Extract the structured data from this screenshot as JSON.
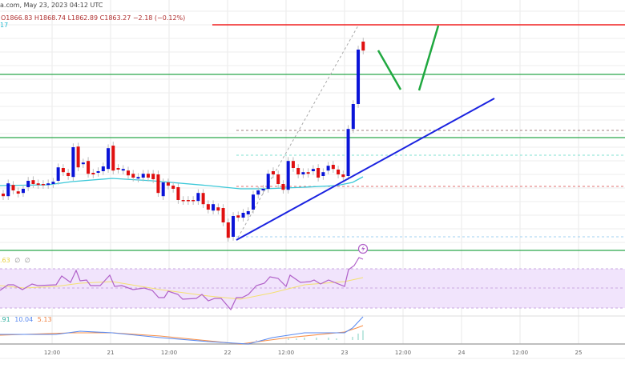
{
  "header": {
    "source_line": "a.com, May 23, 2023 04:12 UTC",
    "ohlc": "O1866.83  H1868.74  L1862.89  C1863.27  −2.18 (−0.12%)",
    "ma_value": "17"
  },
  "rsi": {
    "value": ".63",
    "extra1": "∅",
    "extra2": "∅"
  },
  "macd": {
    "v1": ".91",
    "v2": "10.04",
    "v3": "5.13"
  },
  "x_axis": {
    "ticks": [
      "12:00",
      "21",
      "12:00",
      "22",
      "12:00",
      "23",
      "12:00",
      "24",
      "12:00",
      "25"
    ]
  },
  "colors": {
    "up": "#0a14d8",
    "down": "#e01010",
    "ma": "#3cc8d8",
    "support": "#2aa84a",
    "resistance": "#f02020",
    "trend": "#1a22e0",
    "rsi": "#b060c8",
    "rsi_ma": "#f4e070",
    "macd": "#5a8af0",
    "signal": "#f89048"
  },
  "icons": {
    "alert": "lightning-icon"
  },
  "candles": [
    [
      1818.0,
      1817.2
    ],
    [
      1817.2,
      1821.2
    ],
    [
      1820.7,
      1819.0
    ],
    [
      1818.7,
      1818.0
    ],
    [
      1818.2,
      1819.5
    ],
    [
      1820.0,
      1822.0
    ],
    [
      1822.2,
      1821.0
    ],
    [
      1821.2,
      1820.7
    ],
    [
      1821.0,
      1820.7
    ],
    [
      1820.7,
      1821.2
    ],
    [
      1821.0,
      1821.7
    ],
    [
      1822.0,
      1826.2
    ],
    [
      1826.0,
      1824.7
    ],
    [
      1824.5,
      1823.5
    ],
    [
      1823.2,
      1832.5
    ],
    [
      1832.7,
      1826.2
    ],
    [
      1827.2,
      1827.7
    ],
    [
      1828.2,
      1824.2
    ],
    [
      1824.5,
      1824.0
    ],
    [
      1824.5,
      1825.0
    ],
    [
      1825.0,
      1826.5
    ],
    [
      1825.7,
      1832.2
    ],
    [
      1833.0,
      1825.2
    ],
    [
      1826.0,
      1825.5
    ],
    [
      1825.2,
      1825.7
    ],
    [
      1825.2,
      1823.7
    ],
    [
      1824.2,
      1823.0
    ],
    [
      1822.7,
      1823.2
    ],
    [
      1823.0,
      1824.2
    ],
    [
      1824.2,
      1823.0
    ],
    [
      1824.2,
      1822.5
    ],
    [
      1824.0,
      1818.2
    ],
    [
      1817.2,
      1821.5
    ],
    [
      1821.5,
      1820.5
    ],
    [
      1820.5,
      1819.5
    ],
    [
      1820.0,
      1816.0
    ],
    [
      1816.0,
      1815.7
    ],
    [
      1816.0,
      1815.7
    ],
    [
      1816.0,
      1815.7
    ],
    [
      1815.7,
      1818.2
    ],
    [
      1818.2,
      1814.7
    ],
    [
      1814.7,
      1813.0
    ],
    [
      1812.7,
      1814.7
    ],
    [
      1813.7,
      1812.7
    ],
    [
      1813.5,
      1809.0
    ],
    [
      1809.0,
      1804.2
    ],
    [
      1804.5,
      1811.0
    ],
    [
      1811.2,
      1810.5
    ],
    [
      1810.5,
      1812.0
    ],
    [
      1811.5,
      1812.5
    ],
    [
      1813.0,
      1817.7
    ],
    [
      1817.7,
      1819.0
    ],
    [
      1819.0,
      1819.5
    ],
    [
      1819.5,
      1824.2
    ],
    [
      1825.0,
      1824.0
    ],
    [
      1824.0,
      1821.0
    ],
    [
      1821.0,
      1819.2
    ],
    [
      1819.2,
      1828.2
    ],
    [
      1828.2,
      1826.0
    ],
    [
      1826.0,
      1824.0
    ],
    [
      1824.0,
      1824.7
    ],
    [
      1824.7,
      1824.2
    ],
    [
      1825.0,
      1825.7
    ],
    [
      1826.0,
      1823.0
    ],
    [
      1823.5,
      1824.7
    ],
    [
      1825.2,
      1826.7
    ],
    [
      1827.0,
      1825.7
    ],
    [
      1825.5,
      1824.0
    ],
    [
      1824.0,
      1823.2
    ],
    [
      1823.5,
      1838.2
    ],
    [
      1838.2,
      1846.0
    ],
    [
      1846.0,
      1863.0
    ],
    [
      1865.5,
      1862.7
    ]
  ]
}
